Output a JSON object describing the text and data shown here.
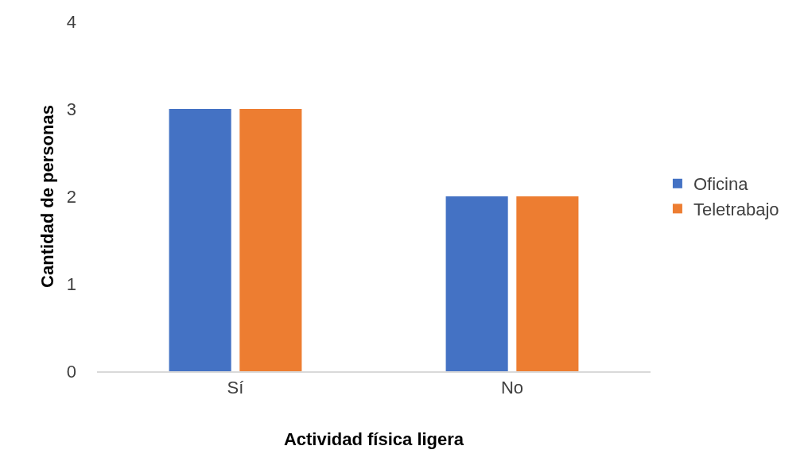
{
  "chart_data": {
    "type": "bar",
    "xlabel": "Actividad física ligera",
    "ylabel": "Cantidad de personas",
    "categories": [
      "Sí",
      "No"
    ],
    "series": [
      {
        "name": "Oficina",
        "color": "#4472c4",
        "values": [
          3,
          2
        ]
      },
      {
        "name": "Teletrabajo",
        "color": "#ed7d31",
        "values": [
          3,
          2
        ]
      }
    ],
    "ylim": [
      0,
      4
    ],
    "yticks": [
      0,
      1,
      2,
      3,
      4
    ],
    "grid": false,
    "legend": "right"
  }
}
